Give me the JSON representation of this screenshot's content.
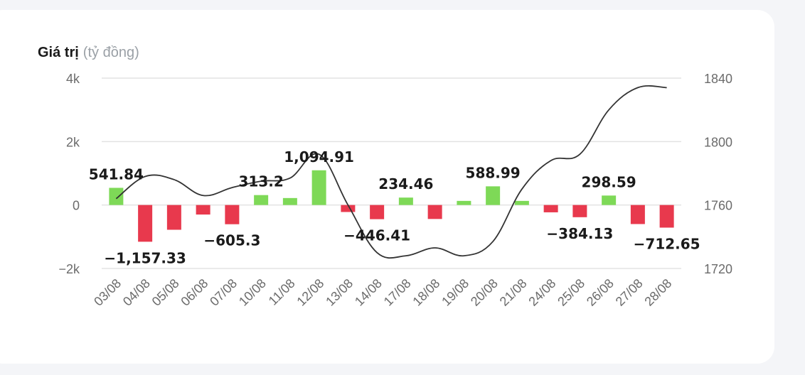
{
  "chart_data": {
    "type": "bar",
    "title": "Giá trị",
    "ylabel_unit": "(tỷ đồng)",
    "categories": [
      "03/08",
      "04/08",
      "05/08",
      "06/08",
      "07/08",
      "10/08",
      "11/08",
      "12/08",
      "13/08",
      "14/08",
      "17/08",
      "18/08",
      "19/08",
      "20/08",
      "21/08",
      "24/08",
      "25/08",
      "26/08",
      "27/08",
      "28/08"
    ],
    "series": [
      {
        "type": "bar",
        "axis": "left",
        "values": [
          541.84,
          -1157.33,
          -780,
          -300,
          -605.3,
          313.2,
          220,
          1094.91,
          -220,
          -446.41,
          234.46,
          -440,
          130,
          588.99,
          130,
          -230,
          -384.13,
          298.59,
          -600,
          -712.65
        ],
        "labels": [
          "541.84",
          "-1,157.33",
          "",
          "",
          "-605.3",
          "313.2",
          "",
          "1,094.91",
          "",
          "-446.41",
          "234.46",
          "",
          "",
          "588.99",
          "",
          "",
          "-384.13",
          "298.59",
          "",
          "-712.65"
        ]
      },
      {
        "type": "line",
        "axis": "right",
        "values": [
          1764,
          1778,
          1776,
          1766,
          1771,
          1775,
          1777,
          1792,
          1760,
          1730,
          1728,
          1733,
          1728,
          1737,
          1770,
          1788,
          1792,
          1820,
          1834,
          1834
        ]
      }
    ],
    "left_axis": {
      "ticks": [
        "4k",
        "2k",
        "0",
        "−2k"
      ],
      "values": [
        4000,
        2000,
        0,
        -2000
      ],
      "range": [
        -2000,
        4000
      ]
    },
    "right_axis": {
      "ticks": [
        "1840",
        "1800",
        "1760",
        "1720"
      ],
      "values": [
        1840,
        1800,
        1760,
        1720
      ],
      "range": [
        1720,
        1840
      ]
    },
    "colors": {
      "positive": "#7ed957",
      "negative": "#e8394d",
      "line": "#333333",
      "grid": "#e3e3e3"
    },
    "grid": true
  }
}
